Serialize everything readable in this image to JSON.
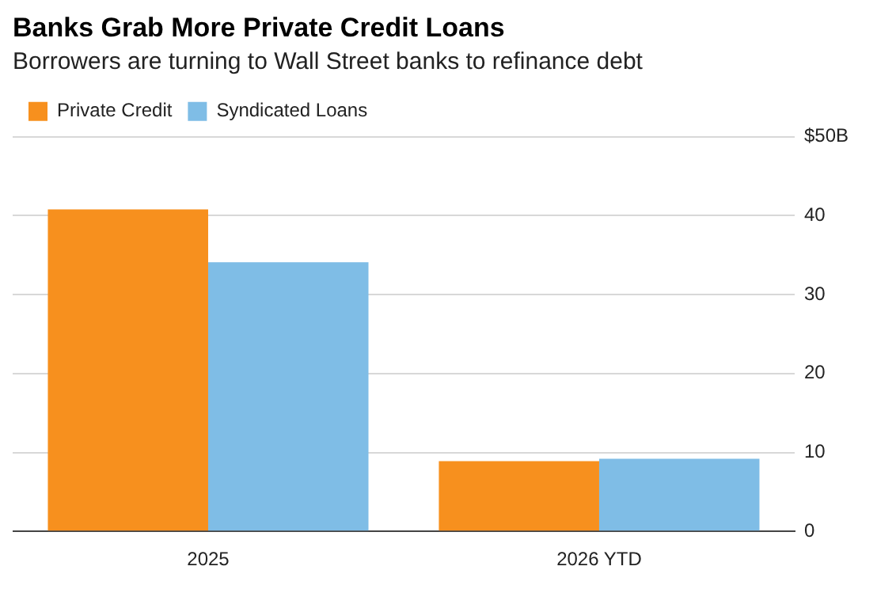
{
  "chart_data": {
    "type": "bar",
    "title": "Banks Grab More Private Credit Loans",
    "subtitle": "Borrowers are turning to Wall Street banks to refinance debt",
    "categories": [
      "2025",
      "2026 YTD"
    ],
    "series": [
      {
        "name": "Private Credit",
        "color": "#f7901e",
        "values": [
          40.8,
          8.9
        ]
      },
      {
        "name": "Syndicated Loans",
        "color": "#7fbde6",
        "values": [
          34.1,
          9.2
        ]
      }
    ],
    "ylim": [
      0,
      50
    ],
    "yticks": [
      0,
      10,
      20,
      30,
      40,
      {
        "value": 50,
        "label": "$50B"
      }
    ],
    "grid": "y",
    "legend": "top left"
  }
}
